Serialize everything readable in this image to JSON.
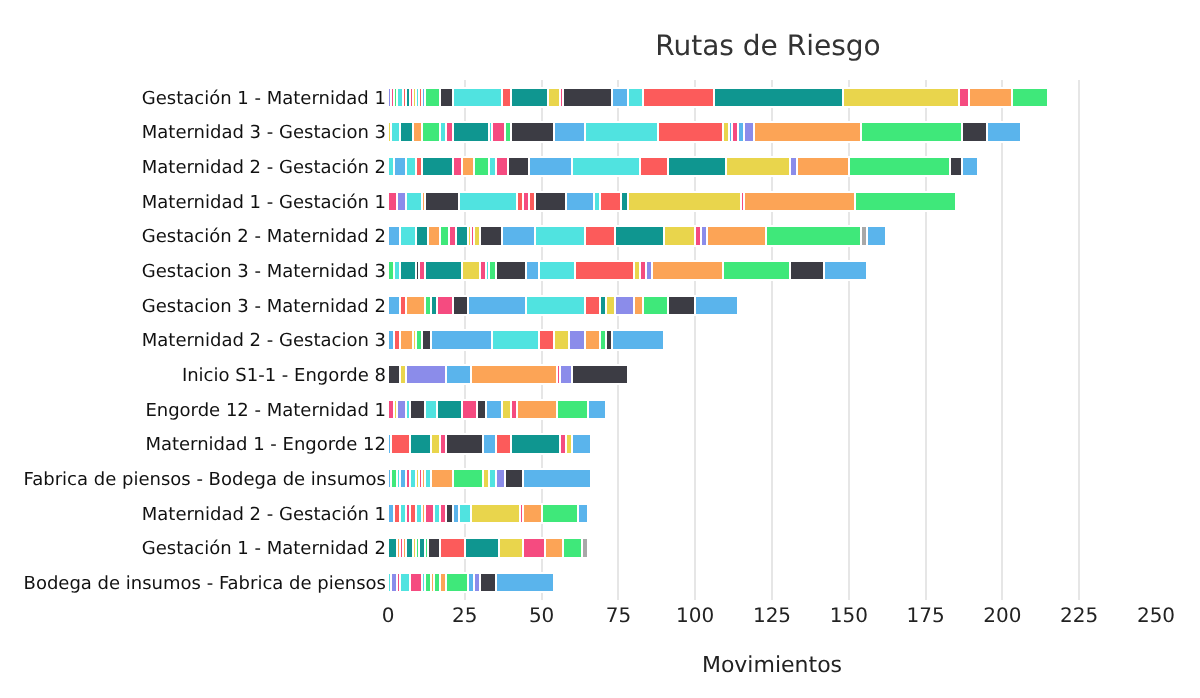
{
  "chart_data": {
    "type": "bar",
    "orientation": "horizontal",
    "stacked": true,
    "title": "Rutas de Riesgo",
    "xlabel": "Movimientos",
    "categories": [
      "Gestación 1 - Maternidad 1",
      "Maternidad 3 - Gestacion 3",
      "Maternidad 2 - Gestación 2",
      "Maternidad 1 - Gestación 1",
      "Gestación 2 - Maternidad 2",
      "Gestacion 3 - Maternidad 3",
      "Gestacion 3 - Maternidad 2",
      "Maternidad 2 - Gestacion 3",
      "Inicio S1-1 - Engorde 8",
      "Engorde 12 - Maternidad 1",
      "Maternidad 1 - Engorde 12",
      "Fabrica de piensos - Bodega de insumos",
      "Maternidad 2 - Gestación 1",
      "Gestación 1 - Maternidad 2",
      "Bodega de insumos - Fabrica de piensos"
    ],
    "xlim": [
      0,
      250
    ],
    "xticks": [
      0,
      25,
      50,
      75,
      100,
      125,
      150,
      175,
      200,
      225,
      250
    ],
    "grid": "x",
    "series": [
      {
        "values": [
          1,
          1,
          2,
          3,
          4,
          2,
          4,
          2,
          4,
          2,
          1,
          1,
          2,
          3,
          1
        ],
        "colors": [
          "#8b8cea",
          "#e9d54c",
          "#50e3e0",
          "#f54b80",
          "#5ab4ec",
          "#3fe87a",
          "#5ab4ec",
          "#5ab4ec",
          "#3c3c44",
          "#f54b80",
          "#5ab4ec",
          "#5ab4ec",
          "#5ab4ec",
          "#0f9690",
          "#50e3e0"
        ]
      },
      {
        "values": [
          1,
          3,
          4,
          3,
          5,
          2,
          2,
          2,
          2,
          1,
          6,
          2,
          2,
          1,
          2
        ],
        "colors": [
          "#f54b80",
          "#50e3e0",
          "#5ab4ec",
          "#8b8cea",
          "#50e3e0",
          "#50e3e0",
          "#fc5b5b",
          "#fc5b5b",
          "#e9d54c",
          "#e9d54c",
          "#fc5b5b",
          "#3fe87a",
          "#fc5b5b",
          "#fca456",
          "#8b8cea"
        ]
      },
      {
        "values": [
          1,
          4,
          3,
          5,
          4,
          5,
          6,
          4,
          13,
          3,
          7,
          1,
          2,
          1,
          1
        ],
        "colors": [
          "#3fe87a",
          "#0f9690",
          "#50e3e0",
          "#50e3e0",
          "#0f9690",
          "#0f9690",
          "#fca456",
          "#fca456",
          "#8b8cea",
          "#8b8cea",
          "#0f9690",
          "#50e3e0",
          "#50e3e0",
          "#f54b80",
          "#f54b80"
        ]
      },
      {
        "values": [
          2,
          3,
          2,
          1,
          4,
          1,
          2,
          1,
          8,
          1,
          3,
          2,
          1,
          1,
          3
        ],
        "colors": [
          "#50e3e0",
          "#fca456",
          "#fc5b5b",
          "#fca456",
          "#fca456",
          "#3c3c44",
          "#3fe87a",
          "#e9d54c",
          "#5ab4ec",
          "#50e3e0",
          "#e9d54c",
          "#5ab4ec",
          "#f54b80",
          "#fca456",
          "#50e3e0"
        ]
      },
      {
        "values": [
          1,
          6,
          10,
          11,
          3,
          2,
          2,
          2,
          28,
          5,
          2,
          1,
          2,
          2,
          4
        ],
        "colors": [
          "#fc5b5b",
          "#3fe87a",
          "#0f9690",
          "#3c3c44",
          "#3fe87a",
          "#f54b80",
          "#0f9690",
          "#3fe87a",
          "#fca456",
          "#3c3c44",
          "#f54b80",
          "#f54b80",
          "#fc5b5b",
          "#0f9690",
          "#f54b80"
        ]
      },
      {
        "values": [
          1,
          2,
          3,
          19,
          2,
          12,
          5,
          3,
          1,
          4,
          12,
          2,
          2,
          1,
          1
        ],
        "colors": [
          "#0f9690",
          "#50e3e0",
          "#f54b80",
          "#50e3e0",
          "#f54b80",
          "#0f9690",
          "#f54b80",
          "#3c3c44",
          "#f54b80",
          "#50e3e0",
          "#3c3c44",
          "#50e3e0",
          "#50e3e0",
          "#e9d54c",
          "#50e3e0"
        ]
      },
      {
        "values": [
          1,
          2,
          4,
          2,
          4,
          6,
          5,
          20,
          4,
          8,
          4,
          1,
          1,
          1,
          2
        ],
        "colors": [
          "#f54b80",
          "#f54b80",
          "#fca456",
          "#fc5b5b",
          "#0f9690",
          "#e9d54c",
          "#3c3c44",
          "#5ab4ec",
          "#8b8cea",
          "#0f9690",
          "#5ab4ec",
          "#e9d54c",
          "#fca456",
          "#3fe87a",
          "#3fe87a"
        ]
      },
      {
        "values": [
          1,
          12,
          5,
          2,
          1,
          2,
          19,
          15,
          18,
          5,
          5,
          1,
          3,
          2,
          1
        ],
        "colors": [
          "#e9d54c",
          "#0f9690",
          "#3fe87a",
          "#f54b80",
          "#e9d54c",
          "#f54b80",
          "#5ab4ec",
          "#50e3e0",
          "#3c3c44",
          "#f54b80",
          "#fc5b5b",
          "#f54b80",
          "#f54b80",
          "#0f9690",
          "#fca456"
        ]
      },
      {
        "values": [
          1,
          1,
          2,
          2,
          1,
          1,
          19,
          5,
          null,
          3,
          16,
          1,
          2,
          1,
          2
        ],
        "colors": [
          "#50e3e0",
          "#50e3e0",
          "#50e3e0",
          "#fc5b5b",
          "#f54b80",
          "#50e3e0",
          "#50e3e0",
          "#fc5b5b",
          null,
          "#3c3c44",
          "#0f9690",
          "#fca456",
          "#50e3e0",
          "#3fe87a",
          "#3fe87a"
        ]
      },
      {
        "values": [
          1,
          4,
          4,
          10,
          2,
          2,
          5,
          5,
          null,
          5,
          2,
          2,
          2,
          4,
          2
        ],
        "colors": [
          "#fc5b5b",
          "#f54b80",
          "#f54b80",
          "#3c3c44",
          "#e9d54c",
          "#3fe87a",
          "#fc5b5b",
          "#e9d54c",
          null,
          "#5ab4ec",
          "#f54b80",
          "#50e3e0",
          "#f54b80",
          "#3c3c44",
          "#fca456"
        ]
      },
      {
        "values": [
          1,
          2,
          7,
          9,
          7,
          10,
          2,
          5,
          null,
          3,
          2,
          7,
          2,
          8,
          7
        ],
        "colors": [
          "#5ab4ec",
          "#3fe87a",
          "#3c3c44",
          "#5ab4ec",
          "#3c3c44",
          "#3c3c44",
          "#0f9690",
          "#8b8cea",
          null,
          "#e9d54c",
          "#e9d54c",
          "#fca456",
          "#3c3c44",
          "#fc5b5b",
          "#3fe87a"
        ]
      },
      {
        "values": [
          5,
          14,
          14,
          2,
          11,
          4,
          3,
          5,
          null,
          2,
          6,
          10,
          2,
          11,
          2
        ],
        "colors": [
          "#3fe87a",
          "#3c3c44",
          "#5ab4ec",
          "#50e3e0",
          "#5ab4ec",
          "#5ab4ec",
          "#e9d54c",
          "#fca456",
          null,
          "#f54b80",
          "#5ab4ec",
          "#3fe87a",
          "#5ab4ec",
          "#0f9690",
          "#5ab4ec"
        ]
      },
      {
        "values": [
          4,
          10,
          22,
          7,
          16,
          12,
          6,
          2,
          null,
          13,
          null,
          2,
          4,
          8,
          2
        ],
        "colors": [
          "#3c3c44",
          "#5ab4ec",
          "#50e3e0",
          "#fc5b5b",
          "#50e3e0",
          "#50e3e0",
          "#8b8cea",
          "#3fe87a",
          null,
          "#fca456",
          null,
          "#e9d54c",
          "#50e3e0",
          "#e9d54c",
          "#8b8cea"
        ]
      },
      {
        "values": [
          16,
          24,
          9,
          2,
          10,
          19,
          3,
          2,
          null,
          10,
          null,
          2,
          16,
          7,
          5
        ],
        "colors": [
          "#50e3e0",
          "#50e3e0",
          "#fc5b5b",
          "#0f9690",
          "#fc5b5b",
          "#fc5b5b",
          "#fca456",
          "#3c3c44",
          null,
          "#3fe87a",
          null,
          "#50e3e0",
          "#e9d54c",
          "#f54b80",
          "#3c3c44"
        ]
      },
      {
        "values": [
          3,
          21,
          19,
          37,
          16,
          2,
          8,
          17,
          null,
          6,
          null,
          3,
          1,
          6,
          19
        ],
        "colors": [
          "#fc5b5b",
          "#fc5b5b",
          "#0f9690",
          "#e9d54c",
          "#0f9690",
          "#e9d54c",
          "#3fe87a",
          "#5ab4ec",
          null,
          "#5ab4ec",
          null,
          "#8b8cea",
          "#f54b80",
          "#fca456",
          "#5ab4ec"
        ]
      },
      {
        "values": [
          12,
          2,
          21,
          1,
          10,
          2,
          9,
          null,
          null,
          null,
          null,
          6,
          6,
          6,
          null
        ],
        "colors": [
          "#0f9690",
          "#e9d54c",
          "#e9d54c",
          "#f54b80",
          "#e9d54c",
          "#f54b80",
          "#3c3c44",
          null,
          null,
          null,
          null,
          "#3c3c44",
          "#fca456",
          "#3fe87a",
          null
        ]
      },
      {
        "values": [
          4,
          1,
          2,
          36,
          2,
          2,
          14,
          null,
          null,
          null,
          null,
          22,
          12,
          2,
          null
        ],
        "colors": [
          "#e9d54c",
          "#5ab4ec",
          "#8b8cea",
          "#fca456",
          "#f54b80",
          "#8b8cea",
          "#5ab4ec",
          null,
          null,
          null,
          null,
          "#5ab4ec",
          "#3fe87a",
          "#a8a8a8",
          null
        ]
      },
      {
        "values": [
          1,
          2,
          17,
          33,
          2,
          23,
          null,
          null,
          null,
          null,
          null,
          null,
          3,
          null,
          null
        ],
        "colors": [
          "#f54b80",
          "#f54b80",
          "#fca456",
          "#3fe87a",
          "#8b8cea",
          "#fca456",
          null,
          null,
          null,
          null,
          null,
          null,
          "#5ab4ec",
          null,
          null
        ]
      },
      {
        "values": [
          16,
          2,
          33,
          null,
          19,
          22,
          null,
          null,
          null,
          null,
          null,
          null,
          null,
          null,
          null
        ],
        "colors": [
          "#3c3c44",
          "#5ab4ec",
          "#3fe87a",
          null,
          "#fca456",
          "#3fe87a",
          null,
          null,
          null,
          null,
          null,
          null,
          null,
          null,
          null
        ]
      },
      {
        "values": [
          5,
          3,
          4,
          null,
          31,
          11,
          null,
          null,
          null,
          null,
          null,
          null,
          null,
          null,
          null
        ],
        "colors": [
          "#5ab4ec",
          "#8b8cea",
          "#3c3c44",
          null,
          "#3fe87a",
          "#3c3c44",
          null,
          null,
          null,
          null,
          null,
          null,
          null,
          null,
          null
        ]
      },
      {
        "values": [
          5,
          35,
          5,
          null,
          2,
          14,
          null,
          null,
          null,
          null,
          null,
          null,
          null,
          null,
          null
        ],
        "colors": [
          "#50e3e0",
          "#fca456",
          "#5ab4ec",
          null,
          "#a8a8a8",
          "#5ab4ec",
          null,
          null,
          null,
          null,
          null,
          null,
          null,
          null,
          null
        ]
      },
      {
        "values": [
          23,
          33,
          null,
          null,
          6,
          null,
          null,
          null,
          null,
          null,
          null,
          null,
          null,
          null,
          null
        ],
        "colors": [
          "#fc5b5b",
          "#3fe87a",
          null,
          null,
          "#5ab4ec",
          null,
          null,
          null,
          null,
          null,
          null,
          null,
          null,
          null,
          null
        ]
      },
      {
        "values": [
          42,
          8,
          null,
          null,
          null,
          null,
          null,
          null,
          null,
          null,
          null,
          null,
          null,
          null,
          null
        ],
        "colors": [
          "#0f9690",
          "#3c3c44",
          null,
          null,
          null,
          null,
          null,
          null,
          null,
          null,
          null,
          null,
          null,
          null,
          null
        ]
      },
      {
        "values": [
          38,
          11,
          null,
          null,
          null,
          null,
          null,
          null,
          null,
          null,
          null,
          null,
          null,
          null,
          null
        ],
        "colors": [
          "#e9d54c",
          "#5ab4ec",
          null,
          null,
          null,
          null,
          null,
          null,
          null,
          null,
          null,
          null,
          null,
          null,
          null
        ]
      },
      {
        "values": [
          3,
          null,
          null,
          null,
          null,
          null,
          null,
          null,
          null,
          null,
          null,
          null,
          null,
          null,
          null
        ],
        "colors": [
          "#f54b80",
          null,
          null,
          null,
          null,
          null,
          null,
          null,
          null,
          null,
          null,
          null,
          null,
          null,
          null
        ]
      },
      {
        "values": [
          14,
          null,
          null,
          null,
          null,
          null,
          null,
          null,
          null,
          null,
          null,
          null,
          null,
          null,
          null
        ],
        "colors": [
          "#fca456",
          null,
          null,
          null,
          null,
          null,
          null,
          null,
          null,
          null,
          null,
          null,
          null,
          null,
          null
        ]
      },
      {
        "values": [
          12,
          null,
          null,
          null,
          null,
          null,
          null,
          null,
          null,
          null,
          null,
          null,
          null,
          null,
          null
        ],
        "colors": [
          "#3fe87a",
          null,
          null,
          null,
          null,
          null,
          null,
          null,
          null,
          null,
          null,
          null,
          null,
          null,
          null
        ]
      }
    ]
  }
}
